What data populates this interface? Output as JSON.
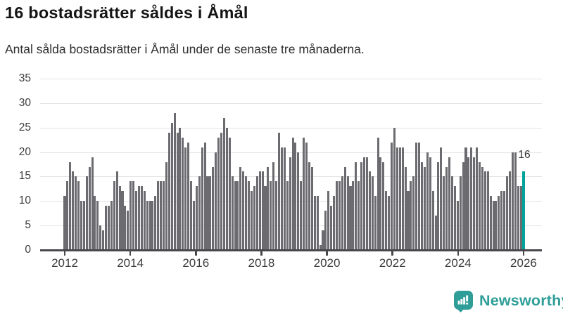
{
  "header": {
    "title": "16 bostadsrätter såldes i Åmål",
    "subtitle": "Antal sålda bostadsrätter i Åmål under de senaste tre månaderna."
  },
  "chart_data": {
    "type": "bar",
    "title": "16 bostadsrätter såldes i Åmål",
    "xlabel": "",
    "ylabel": "",
    "ylim": [
      0,
      35
    ],
    "yticks": [
      0,
      5,
      10,
      15,
      20,
      25,
      30,
      35
    ],
    "xtick_labels": [
      "2012",
      "2014",
      "2016",
      "2018",
      "2020",
      "2022",
      "2024",
      "2026"
    ],
    "grid": true,
    "bar_color": "#6b6b70",
    "highlight_color": "#00a39a",
    "values": [
      11,
      14,
      18,
      16,
      15,
      14,
      10,
      10,
      15,
      17,
      19,
      11,
      10,
      5,
      4,
      9,
      9,
      10,
      14,
      16,
      13,
      12,
      9,
      8,
      14,
      14,
      12,
      13,
      13,
      12,
      10,
      10,
      10,
      11,
      14,
      14,
      14,
      18,
      24,
      26,
      28,
      24,
      25,
      23,
      21,
      22,
      14,
      10,
      13,
      15,
      21,
      22,
      15,
      15,
      17,
      20,
      23,
      24,
      27,
      25,
      23,
      15,
      14,
      14,
      17,
      16,
      15,
      14,
      12,
      13,
      15,
      16,
      16,
      13,
      17,
      14,
      18,
      14,
      24,
      21,
      21,
      14,
      19,
      23,
      22,
      20,
      14,
      23,
      22,
      18,
      17,
      11,
      11,
      1,
      4,
      8,
      12,
      9,
      11,
      14,
      14,
      15,
      17,
      15,
      13,
      14,
      18,
      14,
      18,
      19,
      19,
      16,
      15,
      11,
      23,
      19,
      18,
      12,
      11,
      22,
      25,
      21,
      21,
      21,
      17,
      12,
      14,
      15,
      22,
      22,
      18,
      17,
      20,
      19,
      12,
      7,
      18,
      21,
      15,
      17,
      19,
      15,
      13,
      10,
      15,
      18,
      21,
      19,
      21,
      19,
      21,
      18,
      17,
      16,
      16,
      11,
      10,
      10,
      11,
      12,
      12,
      15,
      16,
      20,
      20,
      13,
      13,
      16
    ],
    "highlight_index": 167,
    "annotation": {
      "label": "16",
      "value": 16
    }
  },
  "annotation": {
    "label": "16"
  },
  "footer": {
    "brand": "Newsworthy",
    "brand_color": "#2f9e98",
    "logo_icon": "bar-chart-speech-bubble-icon"
  }
}
